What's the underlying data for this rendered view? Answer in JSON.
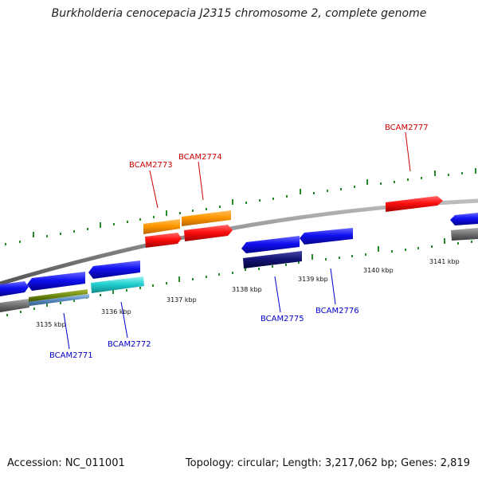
{
  "title": "Burkholderia cenocepacia J2315 chromosome 2, complete genome",
  "footer": {
    "accession": "Accession: NC_011001",
    "topology": "Topology: circular; Length: 3,217,062 bp; Genes: 2,819"
  },
  "colors": {
    "backbone": "#888888",
    "tick_marks": "#2a8a2a",
    "forward_label": "#cc0000",
    "reverse_label": "#0000cc"
  },
  "ticks": [
    {
      "label": "3135 kbp",
      "pos": 3135
    },
    {
      "label": "3136 kbp",
      "pos": 3136
    },
    {
      "label": "3137 kbp",
      "pos": 3137
    },
    {
      "label": "3138 kbp",
      "pos": 3138
    },
    {
      "label": "3139 kbp",
      "pos": 3139
    },
    {
      "label": "3140 kbp",
      "pos": 3140
    },
    {
      "label": "3141 kbp",
      "pos": 3141
    }
  ],
  "gene_labels": [
    {
      "name": "BCAM2771",
      "strand": "reverse"
    },
    {
      "name": "BCAM2772",
      "strand": "reverse"
    },
    {
      "name": "BCAM2773",
      "strand": "forward"
    },
    {
      "name": "BCAM2774",
      "strand": "forward"
    },
    {
      "name": "BCAM2775",
      "strand": "reverse"
    },
    {
      "name": "BCAM2776",
      "strand": "reverse"
    },
    {
      "name": "BCAM2777",
      "strand": "forward"
    }
  ]
}
